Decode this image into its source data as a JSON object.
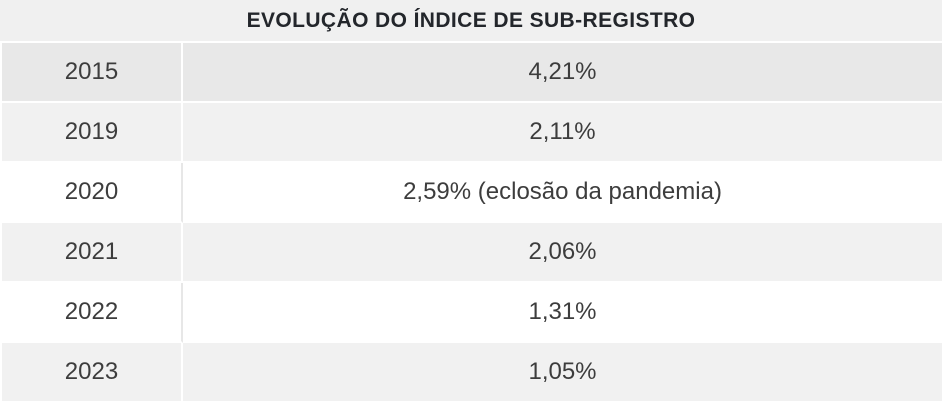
{
  "table": {
    "title": "EVOLUÇÃO DO ÍNDICE DE SUB-REGISTRO",
    "rows": [
      {
        "year": "2015",
        "value": "4,21%"
      },
      {
        "year": "2019",
        "value": "2,11%"
      },
      {
        "year": "2020",
        "value": "2,59% (eclosão da pandemia)"
      },
      {
        "year": "2021",
        "value": "2,06%"
      },
      {
        "year": "2022",
        "value": "1,31%"
      },
      {
        "year": "2023",
        "value": "1,05%"
      }
    ]
  },
  "chart_data": {
    "type": "table",
    "title": "EVOLUÇÃO DO ÍNDICE DE SUB-REGISTRO",
    "categories": [
      "2015",
      "2019",
      "2020",
      "2021",
      "2022",
      "2023"
    ],
    "values": [
      4.21,
      2.11,
      2.59,
      2.06,
      1.31,
      1.05
    ],
    "unit": "%",
    "value_labels": [
      "4,21%",
      "2,11%",
      "2,59% (eclosão da pandemia)",
      "2,06%",
      "1,31%",
      "1,05%"
    ],
    "annotations": {
      "2020": "eclosão da pandemia"
    }
  },
  "colors": {
    "header_bg": "#f0f0f0",
    "row_stripe_bg": "#f1f1f1",
    "row_white_bg": "#ffffff",
    "first_row_bg": "#e8e8e8",
    "separator": "#ffffff",
    "column_line_on_white": "#e7e7e7",
    "title_text": "#23262b",
    "body_text": "#3d3d3d"
  }
}
